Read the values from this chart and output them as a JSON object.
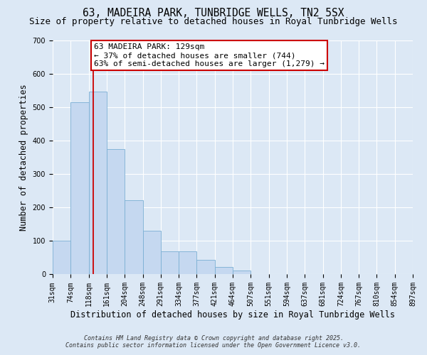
{
  "title": "63, MADEIRA PARK, TUNBRIDGE WELLS, TN2 5SX",
  "subtitle": "Size of property relative to detached houses in Royal Tunbridge Wells",
  "xlabel": "Distribution of detached houses by size in Royal Tunbridge Wells",
  "ylabel": "Number of detached properties",
  "bar_values": [
    100,
    515,
    547,
    375,
    222,
    130,
    68,
    68,
    44,
    22,
    11,
    2,
    1,
    0,
    1,
    0,
    0,
    1,
    0,
    2
  ],
  "bin_edges": [
    31,
    74,
    118,
    161,
    204,
    248,
    291,
    334,
    377,
    421,
    464,
    507,
    551,
    594,
    637,
    681,
    724,
    767,
    810,
    854,
    897
  ],
  "tick_labels": [
    "31sqm",
    "74sqm",
    "118sqm",
    "161sqm",
    "204sqm",
    "248sqm",
    "291sqm",
    "334sqm",
    "377sqm",
    "421sqm",
    "464sqm",
    "507sqm",
    "551sqm",
    "594sqm",
    "637sqm",
    "681sqm",
    "724sqm",
    "767sqm",
    "810sqm",
    "854sqm",
    "897sqm"
  ],
  "bar_color": "#c5d8f0",
  "bar_edge_color": "#7bafd4",
  "property_line_x": 129,
  "annotation_line1": "63 MADEIRA PARK: 129sqm",
  "annotation_line2": "← 37% of detached houses are smaller (744)",
  "annotation_line3": "63% of semi-detached houses are larger (1,279) →",
  "vline_color": "#cc0000",
  "ylim": [
    0,
    700
  ],
  "yticks": [
    0,
    100,
    200,
    300,
    400,
    500,
    600,
    700
  ],
  "background_color": "#dce8f5",
  "grid_color": "#ffffff",
  "footer_line1": "Contains HM Land Registry data © Crown copyright and database right 2025.",
  "footer_line2": "Contains public sector information licensed under the Open Government Licence v3.0.",
  "title_fontsize": 10.5,
  "subtitle_fontsize": 9,
  "xlabel_fontsize": 8.5,
  "ylabel_fontsize": 8.5,
  "tick_fontsize": 7,
  "footer_fontsize": 6,
  "annot_fontsize": 8
}
